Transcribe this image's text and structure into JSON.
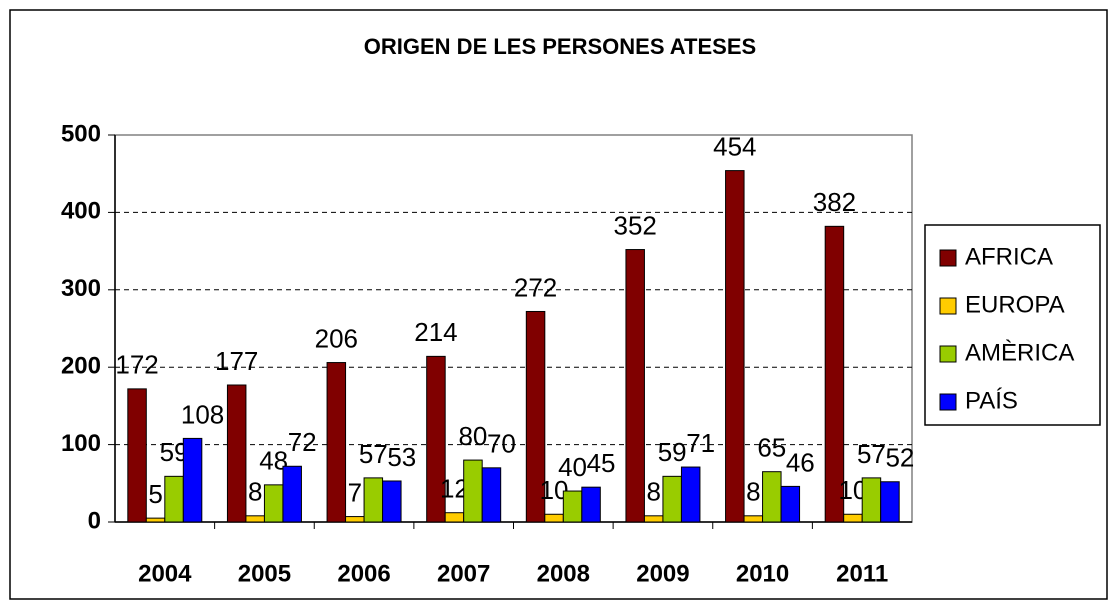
{
  "chart_data": {
    "type": "bar",
    "title": "ORIGEN DE LES PERSONES ATESES",
    "categories": [
      "2004",
      "2005",
      "2006",
      "2007",
      "2008",
      "2009",
      "2010",
      "2011"
    ],
    "series": [
      {
        "name": "AFRICA",
        "color": "#800000",
        "values": [
          172,
          177,
          206,
          214,
          272,
          352,
          454,
          382
        ]
      },
      {
        "name": "EUROPA",
        "color": "#FFCC00",
        "values": [
          5,
          8,
          7,
          12,
          10,
          8,
          8,
          10
        ]
      },
      {
        "name": "AMÈRICA",
        "color": "#99CC00",
        "values": [
          59,
          48,
          57,
          80,
          40,
          59,
          65,
          57
        ]
      },
      {
        "name": "PAÍS",
        "color": "#0000FF",
        "values": [
          108,
          72,
          53,
          70,
          45,
          71,
          46,
          52
        ]
      }
    ],
    "ylim": [
      0,
      500
    ],
    "yticks": [
      0,
      100,
      200,
      300,
      400,
      500
    ],
    "grid": true,
    "legend": "right"
  }
}
